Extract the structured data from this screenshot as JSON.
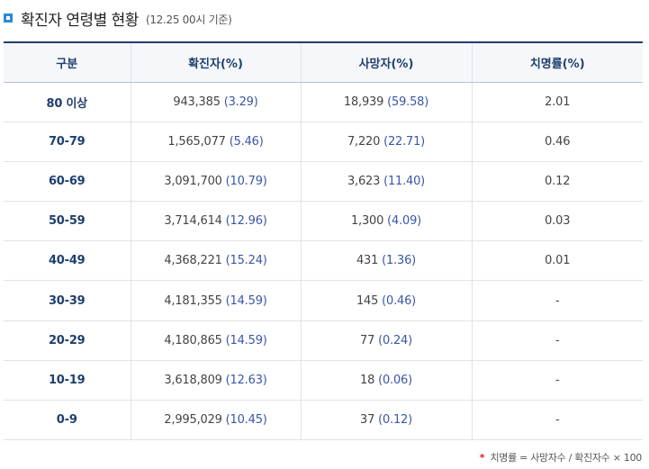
{
  "title": "확진자 연령별 현황",
  "subtitle": "(12.25 00시 기준)",
  "table": {
    "headers": [
      "구분",
      "확진자(%)",
      "사망자(%)",
      "치명률(%)"
    ],
    "rows": [
      {
        "group": "80 이상",
        "cases": "943,385",
        "cases_pct": "(3.29)",
        "deaths": "18,939",
        "deaths_pct": "(59.58)",
        "fatality": "2.01"
      },
      {
        "group": "70-79",
        "cases": "1,565,077",
        "cases_pct": "(5.46)",
        "deaths": "7,220",
        "deaths_pct": "(22.71)",
        "fatality": "0.46"
      },
      {
        "group": "60-69",
        "cases": "3,091,700",
        "cases_pct": "(10.79)",
        "deaths": "3,623",
        "deaths_pct": "(11.40)",
        "fatality": "0.12"
      },
      {
        "group": "50-59",
        "cases": "3,714,614",
        "cases_pct": "(12.96)",
        "deaths": "1,300",
        "deaths_pct": "(4.09)",
        "fatality": "0.03"
      },
      {
        "group": "40-49",
        "cases": "4,368,221",
        "cases_pct": "(15.24)",
        "deaths": "431",
        "deaths_pct": "(1.36)",
        "fatality": "0.01"
      },
      {
        "group": "30-39",
        "cases": "4,181,355",
        "cases_pct": "(14.59)",
        "deaths": "145",
        "deaths_pct": "(0.46)",
        "fatality": "-"
      },
      {
        "group": "20-29",
        "cases": "4,180,865",
        "cases_pct": "(14.59)",
        "deaths": "77",
        "deaths_pct": "(0.24)",
        "fatality": "-"
      },
      {
        "group": "10-19",
        "cases": "3,618,809",
        "cases_pct": "(12.63)",
        "deaths": "18",
        "deaths_pct": "(0.06)",
        "fatality": "-"
      },
      {
        "group": "0-9",
        "cases": "2,995,029",
        "cases_pct": "(10.45)",
        "deaths": "37",
        "deaths_pct": "(0.12)",
        "fatality": "-"
      }
    ]
  },
  "footnote": {
    "marker": "*",
    "text": "치명률 = 사망자수 / 확진자수 × 100"
  },
  "colors": {
    "accent": "#2a8bd6",
    "header_border": "#233c6a",
    "percent_text": "#3a56a6",
    "footnote_marker": "#d6231f"
  }
}
